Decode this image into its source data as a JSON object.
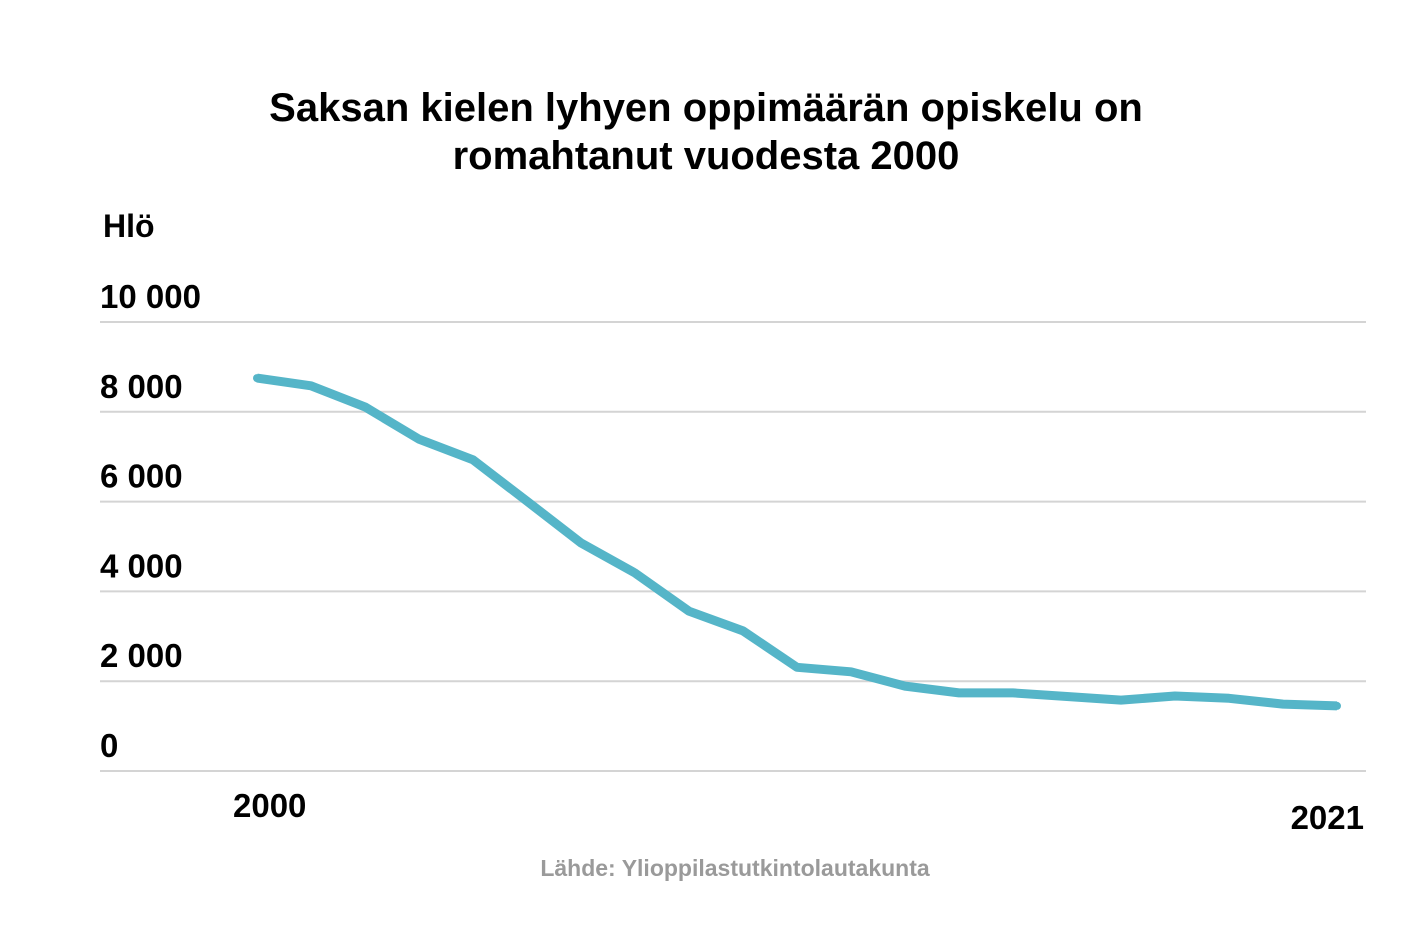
{
  "chart_data": {
    "type": "line",
    "title_lines": [
      "Saksan kielen lyhyen oppimäärän opiskelu on",
      "romahtanut vuodesta 2000"
    ],
    "ylabel": "Hlö",
    "ylim": [
      0,
      10000
    ],
    "y_ticks": [
      0,
      2000,
      4000,
      6000,
      8000,
      10000
    ],
    "y_tick_labels": [
      "0",
      "2 000",
      "4 000",
      "6 000",
      "8 000",
      "10 000"
    ],
    "x_tick_labels": [
      "2000",
      "2021"
    ],
    "grid": true,
    "line_color": "#55b5c8",
    "x": [
      2001,
      2002,
      2003,
      2004,
      2005,
      2006,
      2007,
      2008,
      2009,
      2010,
      2011,
      2012,
      2013,
      2014,
      2015,
      2016,
      2017,
      2018,
      2019,
      2020,
      2021
    ],
    "series": [
      {
        "values": [
          8750,
          8580,
          8110,
          7390,
          6930,
          6010,
          5080,
          4410,
          3560,
          3120,
          2310,
          2210,
          1890,
          1740,
          1740,
          1660,
          1580,
          1670,
          1620,
          1490,
          1450
        ]
      }
    ]
  },
  "source": "Lähde: Ylioppilastutkintolautakunta"
}
